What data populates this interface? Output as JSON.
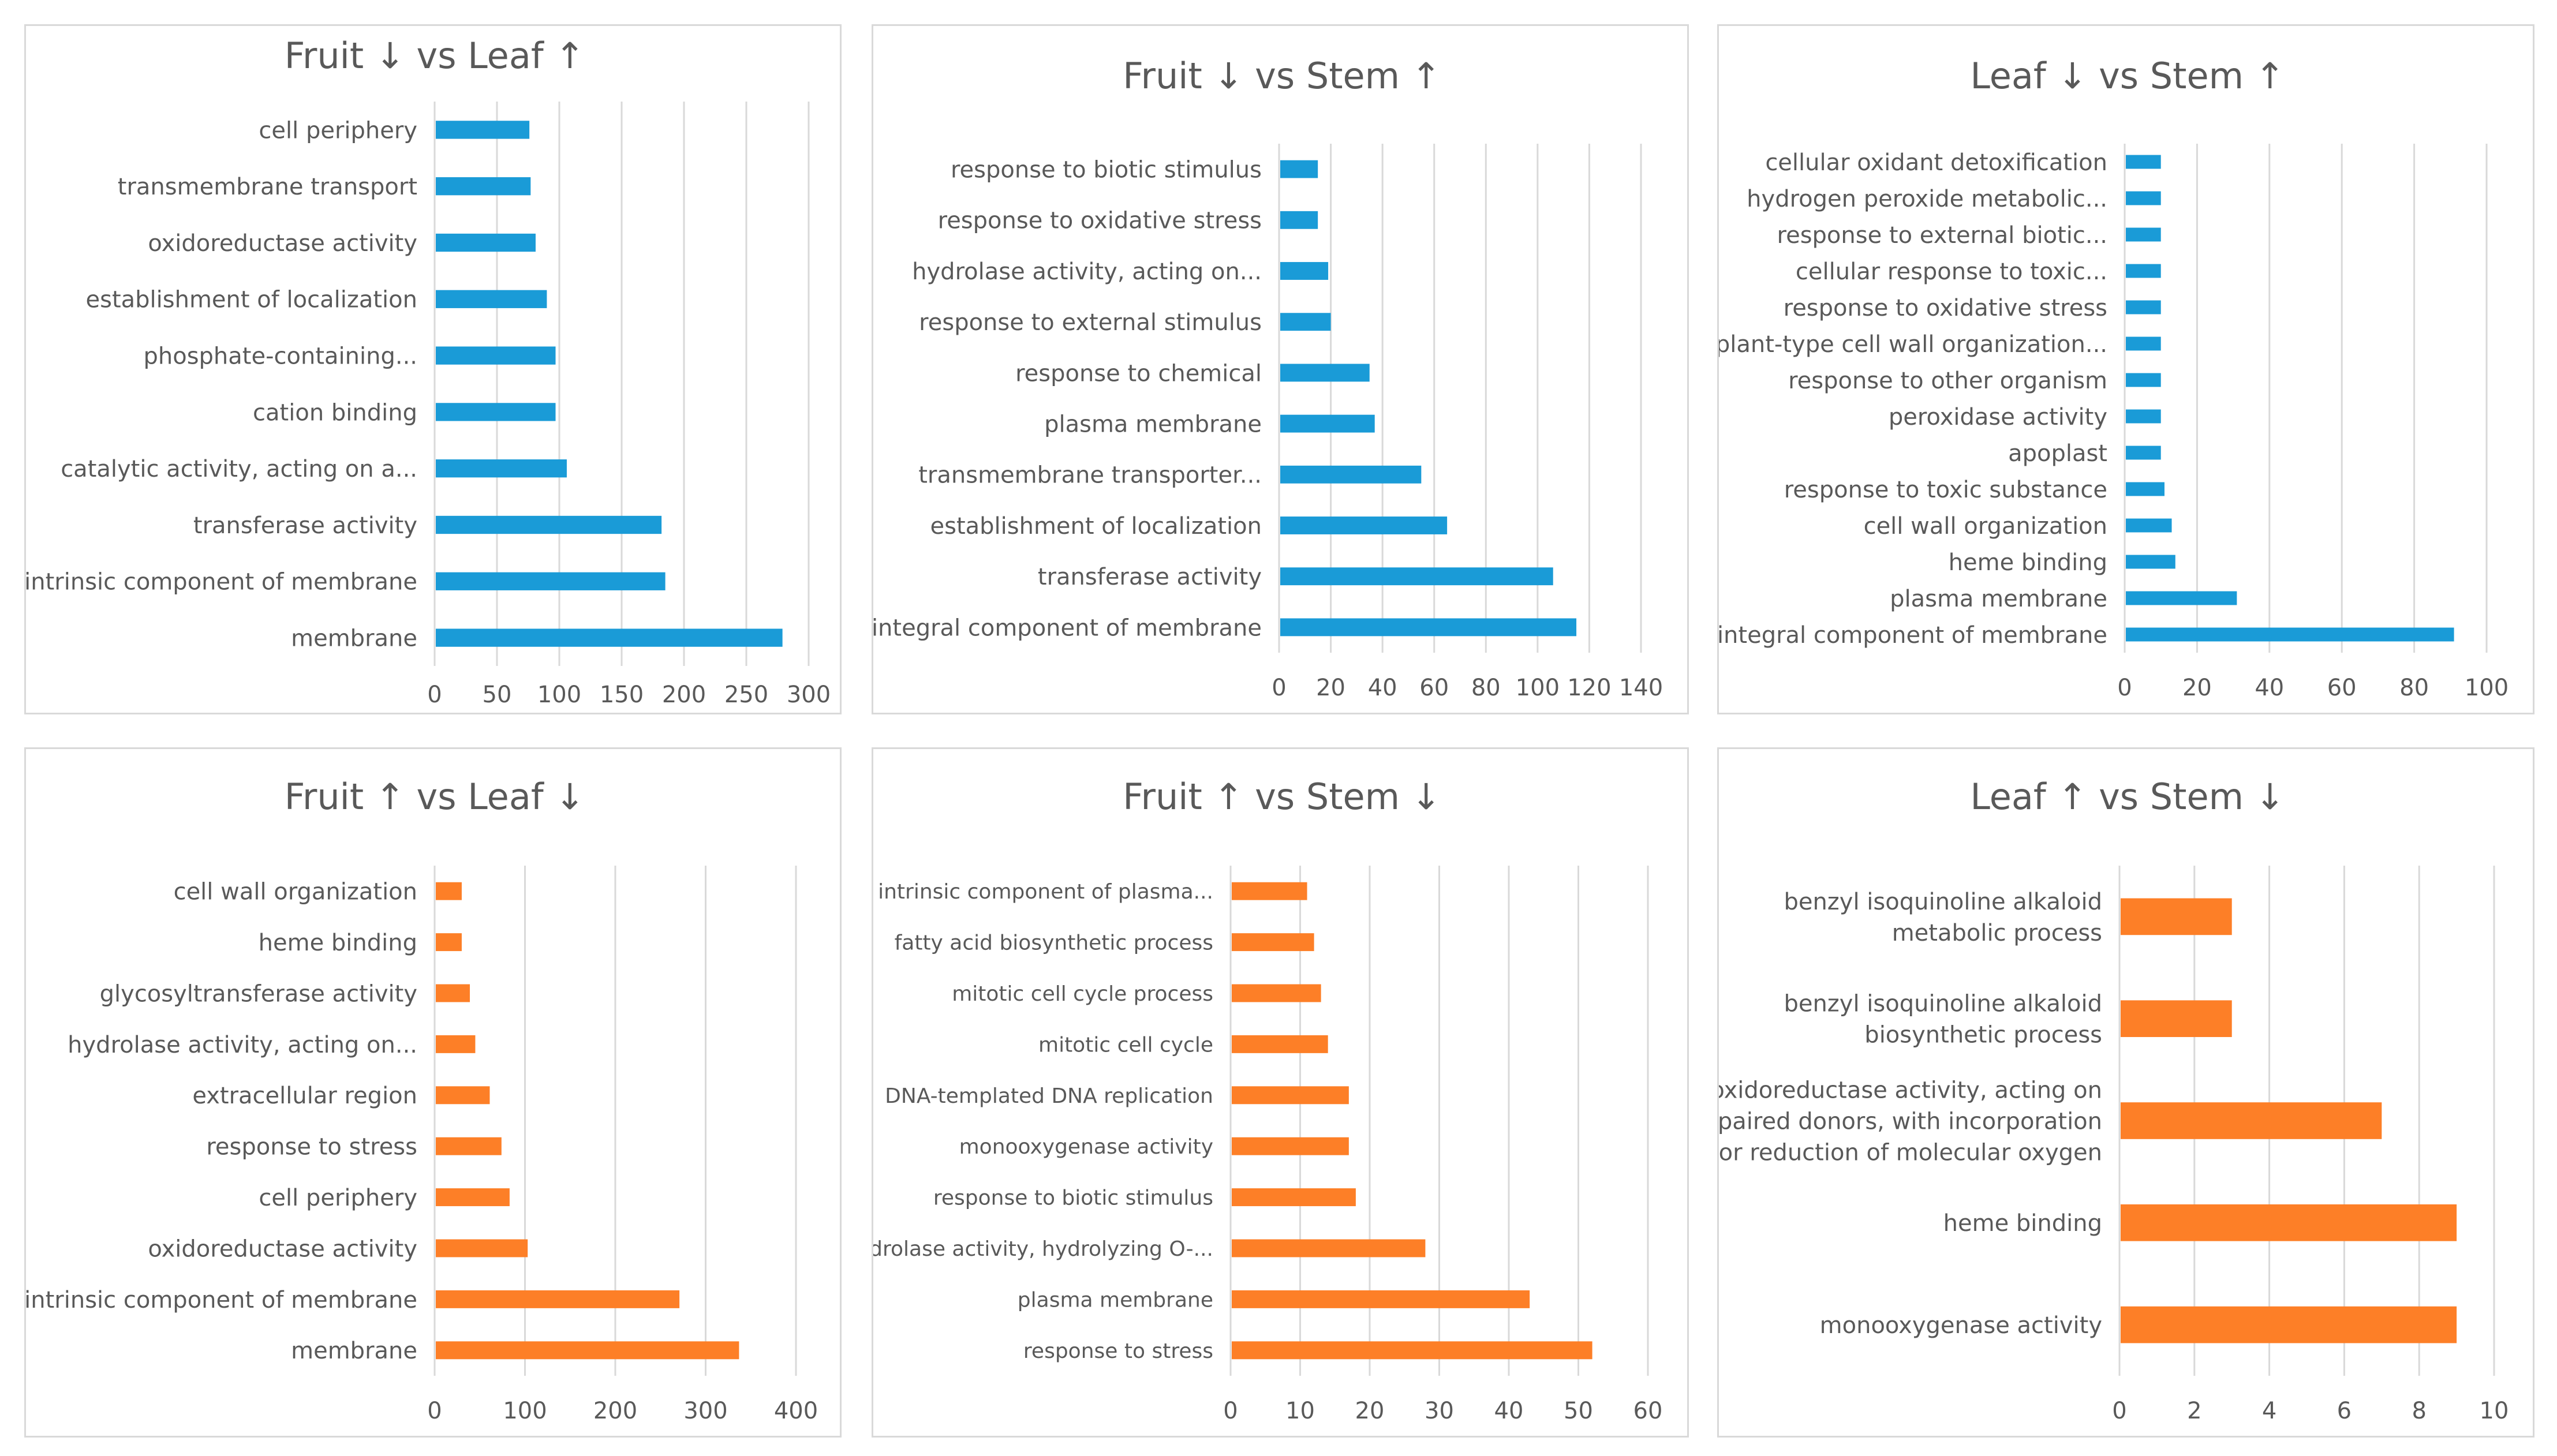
{
  "colors": {
    "up_series": "#1a9bd7",
    "down_series": "#fd7f27",
    "text": "#595959",
    "grid": "#d9d9d9"
  },
  "chart_data": [
    {
      "type": "bar",
      "orientation": "horizontal",
      "color": "#1a9bd7",
      "title": "Fruit ↓  vs Leaf ↑",
      "categories": [
        "cell periphery",
        "transmembrane transport",
        "oxidoreductase activity",
        "establishment of localization",
        "phosphate-containing...",
        "cation binding",
        "catalytic activity, acting on a...",
        "transferase activity",
        "intrinsic component of membrane",
        "membrane"
      ],
      "values": [
        76,
        77,
        81,
        90,
        97,
        97,
        106,
        182,
        185,
        279
      ],
      "xlim": [
        0,
        300
      ],
      "ticks": [
        0,
        50,
        100,
        150,
        200,
        250,
        300
      ],
      "grid": true
    },
    {
      "type": "bar",
      "orientation": "horizontal",
      "color": "#1a9bd7",
      "title": "Fruit ↓  vs Stem ↑",
      "categories": [
        "response to biotic stimulus",
        "response to oxidative stress",
        "hydrolase activity, acting on...",
        "response to external stimulus",
        "response to chemical",
        "plasma membrane",
        "transmembrane transporter...",
        "establishment of localization",
        "transferase activity",
        "integral component of membrane"
      ],
      "values": [
        15,
        15,
        19,
        20,
        35,
        37,
        55,
        65,
        106,
        115
      ],
      "xlim": [
        0,
        140
      ],
      "ticks": [
        0,
        20,
        40,
        60,
        80,
        100,
        120,
        140
      ],
      "grid": true
    },
    {
      "type": "bar",
      "orientation": "horizontal",
      "color": "#1a9bd7",
      "title": "Leaf ↓  vs Stem ↑",
      "categories": [
        "cellular oxidant detoxification",
        "hydrogen peroxide metabolic...",
        "response to external biotic...",
        "cellular response to toxic...",
        "response to oxidative stress",
        "plant-type cell wall organization...",
        "response to other organism",
        "peroxidase activity",
        "apoplast",
        "response to toxic substance",
        "cell wall organization",
        "heme binding",
        "plasma membrane",
        "integral component of membrane"
      ],
      "values": [
        10,
        10,
        10,
        10,
        10,
        10,
        10,
        10,
        10,
        11,
        13,
        14,
        31,
        91
      ],
      "xlim": [
        0,
        100
      ],
      "ticks": [
        0,
        20,
        40,
        60,
        80,
        100
      ],
      "grid": true
    },
    {
      "type": "bar",
      "orientation": "horizontal",
      "color": "#fd7f27",
      "title": "Fruit ↑  vs Leaf ↓",
      "categories": [
        "cell wall organization",
        "heme binding",
        "glycosyltransferase activity",
        "hydrolase activity, acting on...",
        "extracellular region",
        "response to stress",
        "cell periphery",
        "oxidoreductase activity",
        "intrinsic component of membrane",
        "membrane"
      ],
      "values": [
        30,
        30,
        39,
        45,
        61,
        74,
        83,
        103,
        271,
        337
      ],
      "xlim": [
        0,
        400
      ],
      "ticks": [
        0,
        100,
        200,
        300,
        400
      ],
      "grid": true
    },
    {
      "type": "bar",
      "orientation": "horizontal",
      "color": "#fd7f27",
      "title": "Fruit ↑  vs Stem ↓",
      "categories": [
        "intrinsic component of plasma...",
        "fatty acid biosynthetic process",
        "mitotic cell cycle process",
        "mitotic cell cycle",
        "DNA-templated DNA replication",
        "monooxygenase activity",
        "response to biotic stimulus",
        "hydrolase activity, hydrolyzing O-...",
        "plasma membrane",
        "response to stress"
      ],
      "values": [
        11,
        12,
        13,
        14,
        17,
        17,
        18,
        28,
        43,
        52
      ],
      "xlim": [
        0,
        60
      ],
      "ticks": [
        0,
        10,
        20,
        30,
        40,
        50,
        60
      ],
      "grid": true
    },
    {
      "type": "bar",
      "orientation": "horizontal",
      "color": "#fd7f27",
      "title": "Leaf ↑  vs Stem ↓",
      "categories": [
        "benzyl isoquinoline alkaloid\nmetabolic process",
        "benzyl isoquinoline alkaloid\nbiosynthetic process",
        "oxidoreductase activity, acting on\npaired donors, with incorporation\nor reduction of molecular oxygen",
        "heme binding",
        "monooxygenase activity"
      ],
      "values": [
        3,
        3,
        7,
        9,
        9
      ],
      "xlim": [
        0,
        10
      ],
      "ticks": [
        0,
        2,
        4,
        6,
        8,
        10
      ],
      "grid": true
    }
  ]
}
